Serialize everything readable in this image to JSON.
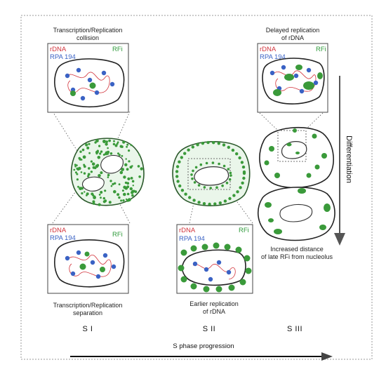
{
  "labels": {
    "top_left": "Transcription/Replication\ncollision",
    "top_right": "Delayed replication\nof rDNA",
    "bottom_left": "Transcription/Replication\nseparation",
    "bottom_mid": "Earlier replication\nof rDNA",
    "right_mid": "Increased distance\nof late RFi from nucleolus"
  },
  "keys": {
    "rdna": "rDNA",
    "rpa": "RPA 194",
    "rfi": "RFi"
  },
  "stages": [
    "S I",
    "S II",
    "S III"
  ],
  "axes": {
    "differentiation": "Differentiation",
    "s_phase": "S phase progression"
  },
  "colors": {
    "rdna": "#d2343c",
    "rpa": "#3a62c4",
    "rfi": "#2e9a3a",
    "arrow": "#555555"
  }
}
